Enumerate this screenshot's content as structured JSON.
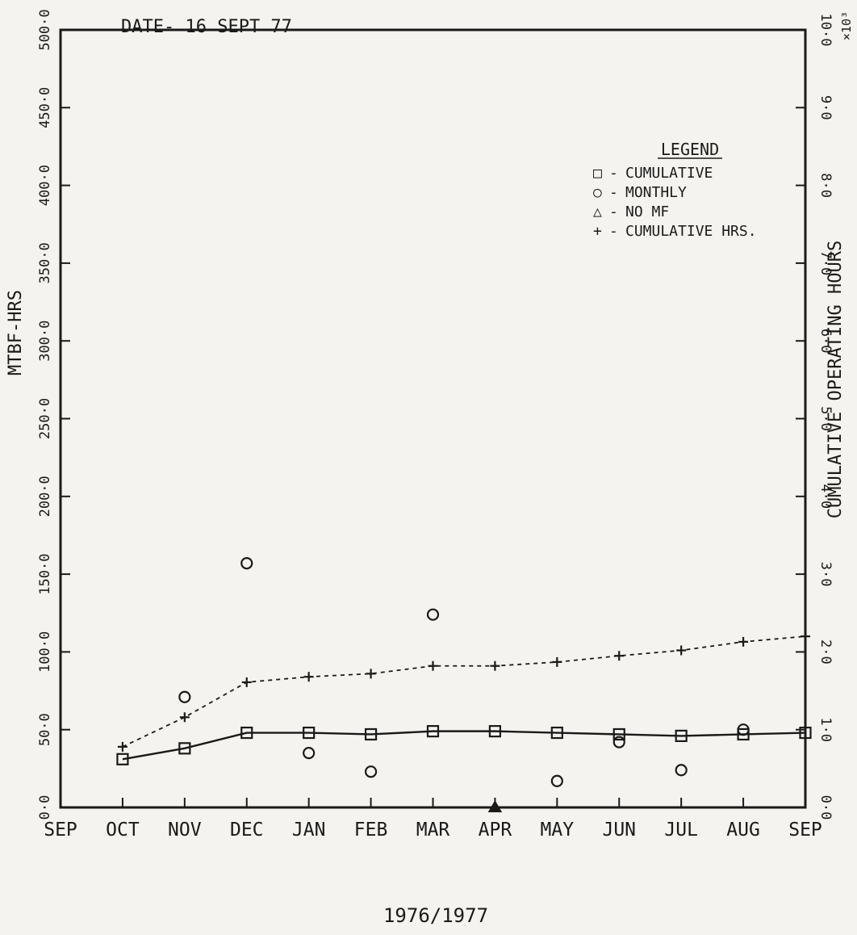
{
  "chart_data": {
    "type": "line",
    "date_label": "DATE- 16 SEPT 77",
    "xlabel": "1976/1977",
    "ylabel": "MTBF-HRS",
    "y2label": "CUMULATIVE OPERATING HOURS",
    "y2_multiplier": "×10³",
    "categories": [
      "SEP",
      "OCT",
      "NOV",
      "DEC",
      "JAN",
      "FEB",
      "MAR",
      "APR",
      "MAY",
      "JUN",
      "JUL",
      "AUG",
      "SEP"
    ],
    "ylim": [
      0,
      500
    ],
    "yticks": [
      "0·0",
      "50·0",
      "100·0",
      "150·0",
      "200·0",
      "250·0",
      "300·0",
      "350·0",
      "400·0",
      "450·0",
      "500·0"
    ],
    "y2lim": [
      0,
      10
    ],
    "y2ticks": [
      "0·0",
      "1·0",
      "2·0",
      "3·0",
      "4·0",
      "5·0",
      "6·0",
      "7·0",
      "8·0",
      "9·0",
      "10·0"
    ],
    "legend": {
      "title": "LEGEND",
      "placement": "top-right",
      "entries": [
        {
          "symbol": "□",
          "label": "CUMULATIVE"
        },
        {
          "symbol": "○",
          "label": "MONTHLY"
        },
        {
          "symbol": "△",
          "label": "NO MF"
        },
        {
          "symbol": "+",
          "label": "CUMULATIVE HRS."
        }
      ]
    },
    "series": [
      {
        "name": "CUMULATIVE",
        "marker": "square",
        "line": "solid",
        "axis": "left",
        "x": [
          "OCT",
          "NOV",
          "DEC",
          "JAN",
          "FEB",
          "MAR",
          "APR",
          "MAY",
          "JUN",
          "JUL",
          "AUG",
          "SEP"
        ],
        "values": [
          31,
          38,
          48,
          48,
          47,
          49,
          49,
          48,
          47,
          46,
          47,
          48
        ]
      },
      {
        "name": "MONTHLY",
        "marker": "circle",
        "line": "none",
        "axis": "left",
        "x": [
          "NOV",
          "DEC",
          "JAN",
          "FEB",
          "MAR",
          "MAY",
          "JUN",
          "JUL",
          "AUG"
        ],
        "values": [
          71,
          157,
          35,
          23,
          124,
          17,
          42,
          24,
          50
        ]
      },
      {
        "name": "NO MF",
        "marker": "triangle",
        "line": "none",
        "axis": "left",
        "x": [
          "APR"
        ],
        "values": [
          0
        ]
      },
      {
        "name": "CUMULATIVE HRS.",
        "marker": "plus",
        "line": "dashed",
        "axis": "right",
        "x": [
          "OCT",
          "NOV",
          "DEC",
          "JAN",
          "FEB",
          "MAR",
          "APR",
          "MAY",
          "JUN",
          "JUL",
          "AUG",
          "SEP"
        ],
        "values": [
          0.78,
          1.16,
          1.61,
          1.68,
          1.72,
          1.82,
          1.82,
          1.87,
          1.95,
          2.02,
          2.13,
          2.2
        ]
      }
    ]
  }
}
